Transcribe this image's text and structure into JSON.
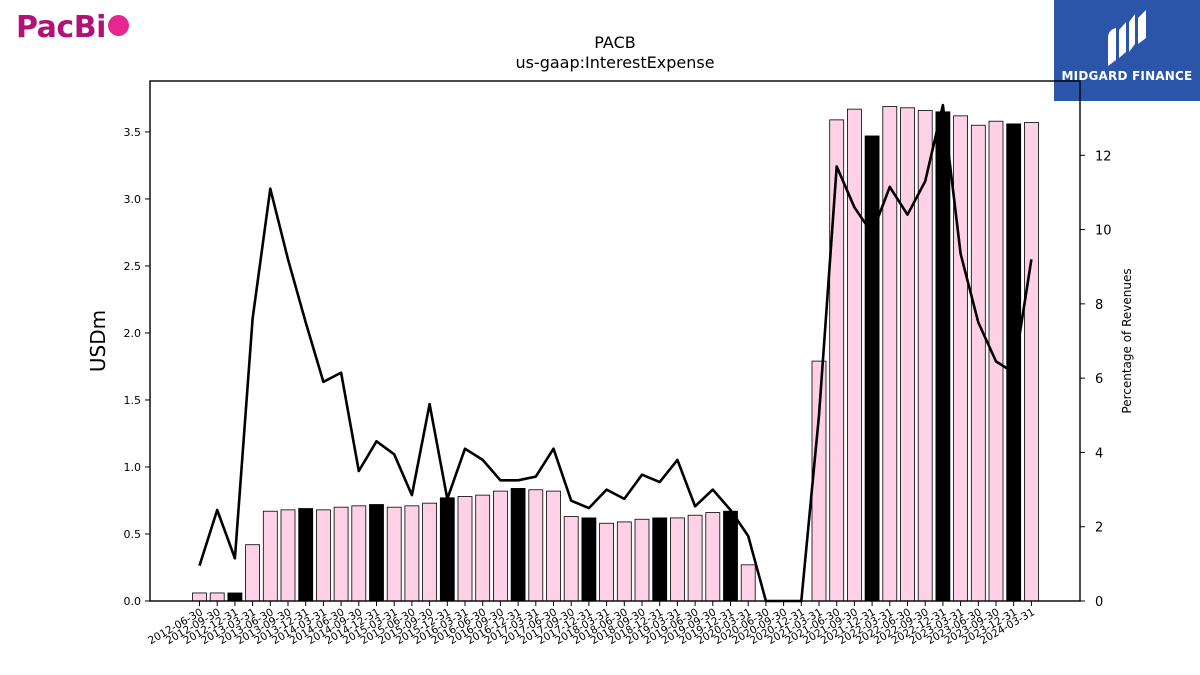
{
  "branding": {
    "left_logo_text": "PacBi",
    "right_logo_text": "MIDGARD FINANCE",
    "right_logo_icon": "midgard-logo-icon",
    "colors": {
      "pacbio": "#b0127a",
      "pacbio_dot": "#e8268f",
      "midgard_bg": "#2a55a8"
    }
  },
  "chart_data": {
    "type": "bar",
    "title": "PACB",
    "subtitle": "us-gaap:InterestExpense",
    "ylabel": "USDm",
    "y2label": "Percentage of Revenues",
    "ylim": [
      0,
      3.88
    ],
    "y2lim": [
      0,
      14.0
    ],
    "yticks": [
      "0.0",
      "0.5",
      "1.0",
      "1.5",
      "2.0",
      "2.5",
      "3.0",
      "3.5"
    ],
    "y2ticks": [
      "0",
      "2",
      "4",
      "6",
      "8",
      "10",
      "12"
    ],
    "categories": [
      "2012-06-30",
      "2012-09-30",
      "2012-12-31",
      "2013-03-31",
      "2013-06-30",
      "2013-09-30",
      "2013-12-31",
      "2014-03-31",
      "2014-06-30",
      "2014-09-30",
      "2014-12-31",
      "2015-03-31",
      "2015-06-30",
      "2015-09-30",
      "2015-12-31",
      "2016-03-31",
      "2016-06-30",
      "2016-09-30",
      "2016-12-31",
      "2017-03-31",
      "2017-06-30",
      "2017-09-30",
      "2017-12-31",
      "2018-03-31",
      "2018-06-30",
      "2018-09-30",
      "2018-12-31",
      "2019-03-31",
      "2019-06-30",
      "2019-09-30",
      "2019-12-31",
      "2020-03-31",
      "2020-06-30",
      "2020-09-30",
      "2020-12-31",
      "2021-03-31",
      "2021-06-30",
      "2021-09-30",
      "2021-12-31",
      "2022-03-31",
      "2022-06-30",
      "2022-09-30",
      "2022-12-31",
      "2023-03-31",
      "2023-06-30",
      "2023-09-30",
      "2023-12-31",
      "2024-03-31"
    ],
    "bar_colors": {
      "quarter": "#ffd1e6",
      "fiscal_year_end": "#000000"
    },
    "series": [
      {
        "type": "bar",
        "values": [
          0.06,
          0.06,
          0.06,
          0.42,
          0.67,
          0.68,
          0.69,
          0.68,
          0.7,
          0.71,
          0.72,
          0.7,
          0.71,
          0.73,
          0.77,
          0.78,
          0.79,
          0.82,
          0.84,
          0.83,
          0.82,
          0.63,
          0.62,
          0.58,
          0.59,
          0.61,
          0.62,
          0.62,
          0.64,
          0.66,
          0.67,
          0.27,
          0,
          0,
          0,
          1.79,
          3.59,
          3.67,
          3.47,
          3.69,
          3.68,
          3.66,
          3.65,
          3.62,
          3.55,
          3.58,
          3.56,
          3.57
        ],
        "year_end_flags": [
          0,
          0,
          1,
          0,
          0,
          0,
          1,
          0,
          0,
          0,
          1,
          0,
          0,
          0,
          1,
          0,
          0,
          0,
          1,
          0,
          0,
          0,
          1,
          0,
          0,
          0,
          1,
          0,
          0,
          0,
          1,
          0,
          0,
          0,
          1,
          0,
          0,
          0,
          1,
          0,
          0,
          0,
          1,
          0,
          0,
          0,
          1,
          0
        ]
      },
      {
        "type": "line",
        "axis": "right",
        "values": [
          0.95,
          2.45,
          1.15,
          7.6,
          11.1,
          9.2,
          7.5,
          5.9,
          6.15,
          3.5,
          4.3,
          3.95,
          2.85,
          5.3,
          2.75,
          4.1,
          3.8,
          3.25,
          3.25,
          3.35,
          4.1,
          2.7,
          2.5,
          3.0,
          2.75,
          3.4,
          3.2,
          3.8,
          2.55,
          3.0,
          2.45,
          1.75,
          0,
          0,
          0,
          5.0,
          11.7,
          10.6,
          9.9,
          11.15,
          10.4,
          11.3,
          13.35,
          9.35,
          7.5,
          6.45,
          6.15,
          9.2
        ]
      }
    ]
  }
}
